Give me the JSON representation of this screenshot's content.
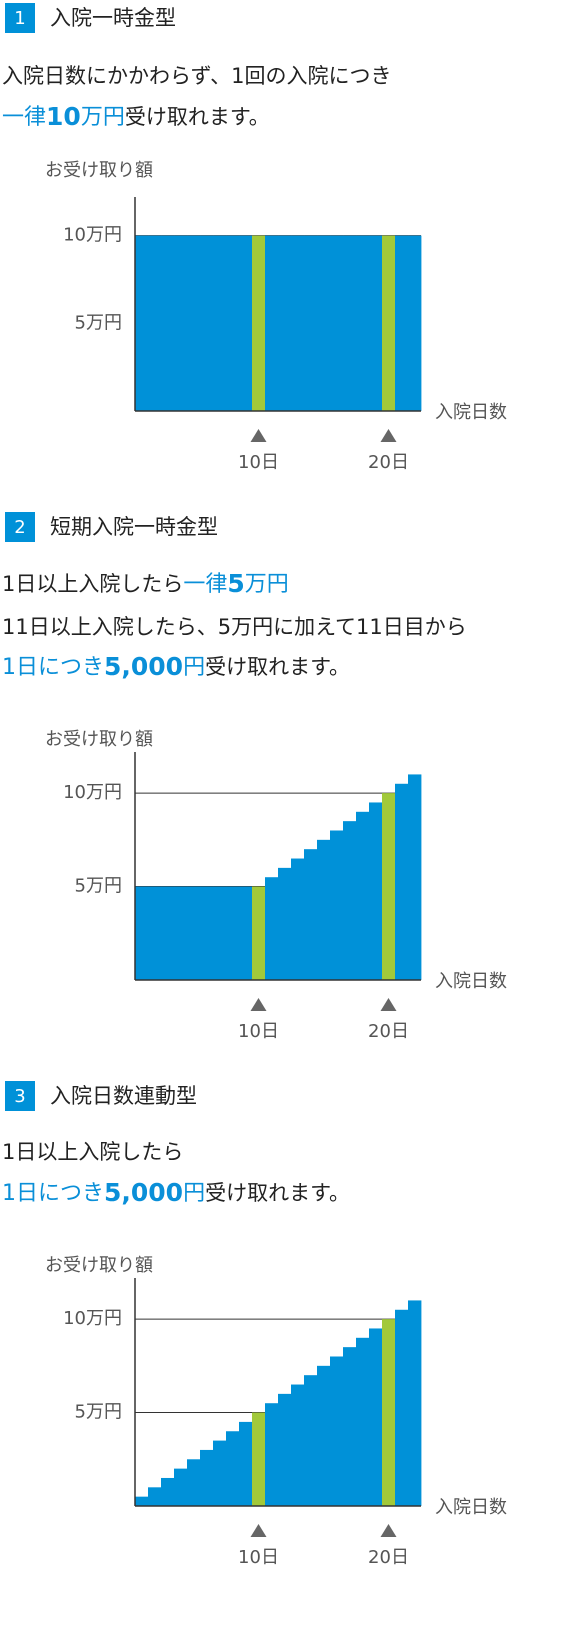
{
  "sections": [
    {
      "number": "1",
      "title": "入院一時金型",
      "lines": [
        [
          {
            "text": "入院日数にかかわらず、1回の入院につき",
            "style": "plain"
          }
        ],
        [
          {
            "text": "一律",
            "style": "blue"
          },
          {
            "text": "10",
            "style": "blue-bold"
          },
          {
            "text": "万円",
            "style": "blue"
          },
          {
            "text": "受け取れます。",
            "style": "plain"
          }
        ]
      ]
    },
    {
      "number": "2",
      "title": "短期入院一時金型",
      "lines": [
        [
          {
            "text": "1日以上入院したら",
            "style": "plain"
          },
          {
            "text": "一律",
            "style": "blue"
          },
          {
            "text": "5",
            "style": "blue-bold"
          },
          {
            "text": "万円",
            "style": "blue"
          }
        ],
        [
          {
            "text": "11日以上入院したら、5万円に加えて11日目から",
            "style": "plain"
          }
        ],
        [
          {
            "text": "1日につき",
            "style": "blue"
          },
          {
            "text": "5,000",
            "style": "blue-bold"
          },
          {
            "text": "円",
            "style": "blue"
          },
          {
            "text": "受け取れます。",
            "style": "plain"
          }
        ]
      ]
    },
    {
      "number": "3",
      "title": "入院日数連動型",
      "lines": [
        [
          {
            "text": "1日以上入院したら",
            "style": "plain"
          }
        ],
        [
          {
            "text": "1日につき",
            "style": "blue"
          },
          {
            "text": "5,000",
            "style": "blue-bold"
          },
          {
            "text": "円",
            "style": "blue"
          },
          {
            "text": "受け取れます。",
            "style": "plain"
          }
        ]
      ]
    }
  ],
  "chart_data": [
    {
      "type": "bar",
      "y_label": "お受け取り額",
      "x_label": "入院日数",
      "categories": [
        null,
        null,
        null,
        null,
        null,
        null,
        null,
        null,
        null,
        "10日",
        null,
        null,
        null,
        null,
        null,
        null,
        null,
        null,
        null,
        "20日",
        null,
        null
      ],
      "values": [
        10,
        10,
        10,
        10,
        10,
        10,
        10,
        10,
        10,
        10,
        10,
        10,
        10,
        10,
        10,
        10,
        10,
        10,
        10,
        10,
        10,
        10
      ],
      "color": "#0091d8",
      "highlight_color": "#a2c93a",
      "ylim": [
        0,
        12.2
      ],
      "yticks": [
        {
          "value": 5,
          "label": "5万円"
        },
        {
          "value": 10,
          "label": "10万円"
        }
      ],
      "grid": true
    },
    {
      "type": "bar",
      "y_label": "お受け取り額",
      "x_label": "入院日数",
      "categories": [
        null,
        null,
        null,
        null,
        null,
        null,
        null,
        null,
        null,
        "10日",
        null,
        null,
        null,
        null,
        null,
        null,
        null,
        null,
        null,
        "20日",
        null,
        null
      ],
      "values": [
        5,
        5,
        5,
        5,
        5,
        5,
        5,
        5,
        5,
        5,
        5.5,
        6,
        6.5,
        7,
        7.5,
        8,
        8.5,
        9,
        9.5,
        10,
        10.5,
        11
      ],
      "color": "#0091d8",
      "highlight_color": "#a2c93a",
      "ylim": [
        0,
        12.2
      ],
      "yticks": [
        {
          "value": 5,
          "label": "5万円"
        },
        {
          "value": 10,
          "label": "10万円"
        }
      ],
      "grid": true
    },
    {
      "type": "bar",
      "y_label": "お受け取り額",
      "x_label": "入院日数",
      "categories": [
        null,
        null,
        null,
        null,
        null,
        null,
        null,
        null,
        null,
        "10日",
        null,
        null,
        null,
        null,
        null,
        null,
        null,
        null,
        null,
        "20日",
        null,
        null
      ],
      "values": [
        0.5,
        1,
        1.5,
        2,
        2.5,
        3,
        3.5,
        4,
        4.5,
        5,
        5.5,
        6,
        6.5,
        7,
        7.5,
        8,
        8.5,
        9,
        9.5,
        10,
        10.5,
        11
      ],
      "color": "#0091d8",
      "highlight_color": "#a2c93a",
      "ylim": [
        0,
        12.2
      ],
      "yticks": [
        {
          "value": 5,
          "label": "5万円"
        },
        {
          "value": 10,
          "label": "10万円"
        }
      ],
      "grid": true
    }
  ]
}
